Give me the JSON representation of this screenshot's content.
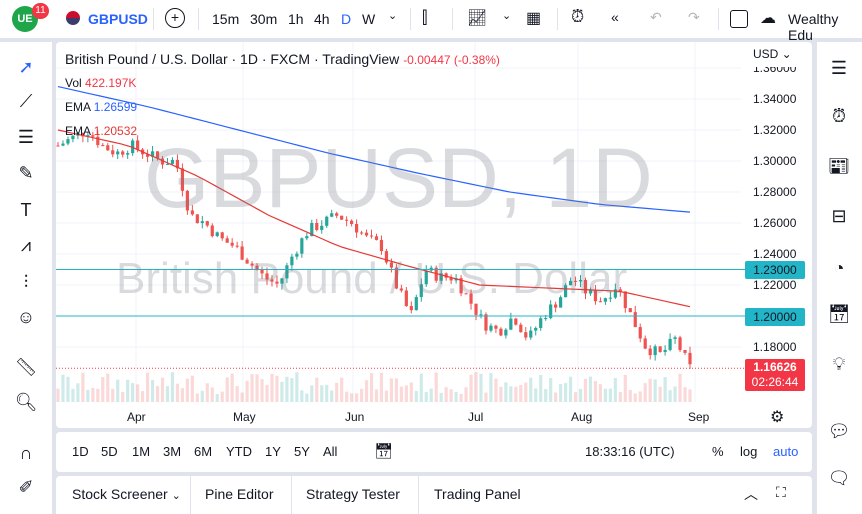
{
  "header": {
    "logo_badge": "11",
    "symbol": "GBPUSD",
    "intervals": [
      "15m",
      "30m",
      "1h",
      "4h",
      "D",
      "W"
    ],
    "active_interval": "D",
    "account": "Wealthy Edu"
  },
  "legend": {
    "title": "British Pound / U.S. Dollar · 1D · FXCM · TradingView",
    "change": "-0.00447 (-0.38%)",
    "vol_label": "Vol",
    "vol_value": "422.197K",
    "ema1_label": "EMA",
    "ema1_value": "1.26599",
    "ema2_label": "EMA",
    "ema2_value": "1.20532"
  },
  "watermark": {
    "big": "GBPUSD, 1D",
    "sub": "British Pound / U.S. Dollar"
  },
  "currency": "USD",
  "y_ticks": [
    "1.36000",
    "1.34000",
    "1.32000",
    "1.30000",
    "1.28000",
    "1.26000",
    "1.24000",
    "1.22000",
    "1.18000"
  ],
  "levels": [
    "1.23000",
    "1.20000"
  ],
  "last_price": "1.16626",
  "countdown": "02:26:44",
  "x_ticks": [
    "Apr",
    "May",
    "Jun",
    "Jul",
    "Aug",
    "Sep"
  ],
  "periods": [
    "1D",
    "5D",
    "1M",
    "3M",
    "6M",
    "YTD",
    "1Y",
    "5Y",
    "All"
  ],
  "clock": "18:33:16 (UTC)",
  "scale_opts": {
    "pct": "%",
    "log": "log",
    "auto": "auto"
  },
  "tabs": [
    "Stock Screener",
    "Pine Editor",
    "Strategy Tester",
    "Trading Panel"
  ],
  "colors": {
    "up": "#26a69a",
    "down": "#ef5350",
    "ema_long": "#2962ff",
    "ema_short": "#e53935",
    "level": "#22b5c8",
    "last": "#f23645"
  },
  "chart_data": {
    "type": "candlestick",
    "approx_close": [
      1.31,
      1.315,
      1.32,
      1.31,
      1.305,
      1.31,
      1.305,
      1.3,
      1.3,
      1.265,
      1.26,
      1.25,
      1.245,
      1.235,
      1.225,
      1.22,
      1.24,
      1.255,
      1.26,
      1.265,
      1.26,
      1.25,
      1.245,
      1.22,
      1.2,
      1.23,
      1.225,
      1.225,
      1.21,
      1.195,
      1.19,
      1.2,
      1.185,
      1.2,
      1.21,
      1.225,
      1.215,
      1.21,
      1.22,
      1.2,
      1.18,
      1.175,
      1.185,
      1.16626
    ],
    "ema_long": [
      1.348,
      1.335,
      1.32,
      1.305,
      1.292,
      1.28,
      1.272,
      1.267
    ],
    "ema_short": [
      1.32,
      1.31,
      1.29,
      1.265,
      1.245,
      1.232,
      1.22,
      1.218,
      1.216,
      1.206
    ]
  }
}
